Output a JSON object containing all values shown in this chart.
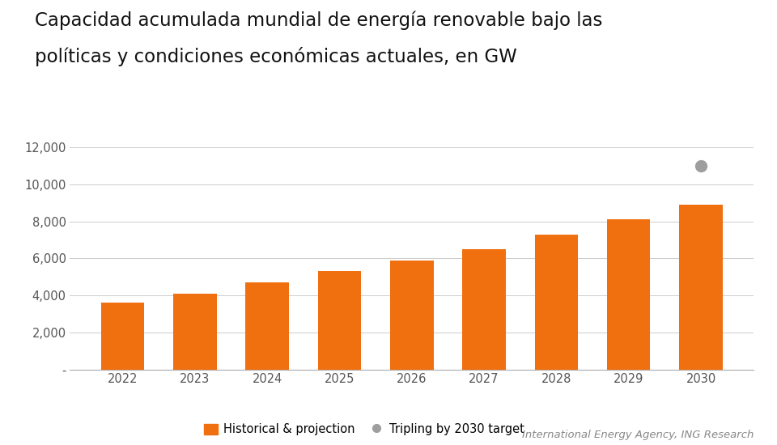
{
  "title_line1": "Capacidad acumulada mundial de energía renovable bajo las",
  "title_line2": "políticas y condiciones económicas actuales, en GW",
  "years": [
    2022,
    2023,
    2024,
    2025,
    2026,
    2027,
    2028,
    2029,
    2030
  ],
  "bar_values": [
    3600,
    4100,
    4700,
    5300,
    5900,
    6500,
    7300,
    8100,
    8900
  ],
  "target_value": 11000,
  "target_year": 2030,
  "bar_color": "#F07010",
  "target_dot_color": "#9E9E9E",
  "background_color": "#FFFFFF",
  "grid_color": "#CCCCCC",
  "yticks": [
    0,
    2000,
    4000,
    6000,
    8000,
    10000,
    12000
  ],
  "ytick_labels": [
    "-",
    "2,000",
    "4,000",
    "6,000",
    "8,000",
    "10,000",
    "12,000"
  ],
  "legend_bar_label": "Historical & projection",
  "legend_dot_label": "Tripling by 2030 target",
  "source_text": "International Energy Agency, ING Research",
  "title_fontsize": 16.5,
  "axis_fontsize": 10.5,
  "legend_fontsize": 10.5,
  "source_fontsize": 9.5
}
